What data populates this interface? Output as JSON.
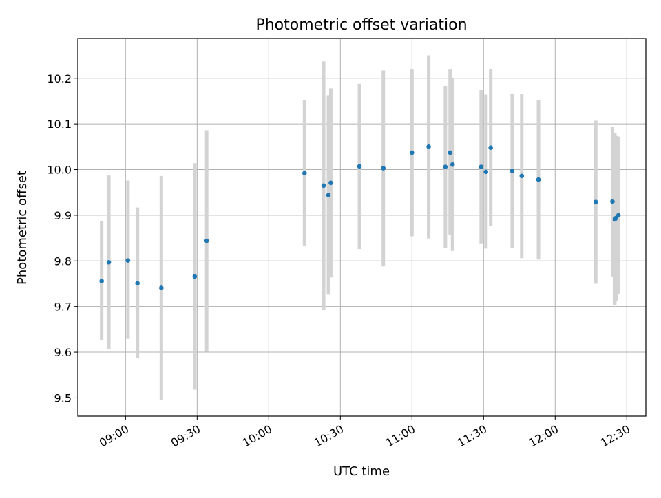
{
  "chart_data": {
    "type": "scatter",
    "title": "Photometric offset variation",
    "xlabel": "UTC time",
    "ylabel": "Photometric offset",
    "x_ticks": [
      "09:00",
      "09:30",
      "10:00",
      "10:30",
      "11:00",
      "11:30",
      "12:00",
      "12:30"
    ],
    "y_ticks": [
      "9.5",
      "9.6",
      "9.7",
      "9.8",
      "9.9",
      "10.0",
      "10.1",
      "10.2"
    ],
    "xlim": [
      "08:40",
      "12:38"
    ],
    "ylim": [
      9.46,
      10.287
    ],
    "grid": true,
    "colors": {
      "point": "#1f77b4",
      "errorbar": "#d3d3d3",
      "grid": "#b0b0b0"
    },
    "points": [
      {
        "time": "08:50",
        "y": 9.756,
        "low": 9.627,
        "high": 9.887
      },
      {
        "time": "08:53",
        "y": 9.797,
        "low": 9.607,
        "high": 9.987
      },
      {
        "time": "09:01",
        "y": 9.801,
        "low": 9.629,
        "high": 9.976
      },
      {
        "time": "09:05",
        "y": 9.751,
        "low": 9.587,
        "high": 9.917
      },
      {
        "time": "09:15",
        "y": 9.741,
        "low": 9.496,
        "high": 9.986
      },
      {
        "time": "09:29",
        "y": 9.766,
        "low": 9.518,
        "high": 10.014
      },
      {
        "time": "09:34",
        "y": 9.844,
        "low": 9.601,
        "high": 10.086
      },
      {
        "time": "10:15",
        "y": 9.992,
        "low": 9.832,
        "high": 10.153
      },
      {
        "time": "10:23",
        "y": 9.965,
        "low": 9.693,
        "high": 10.237
      },
      {
        "time": "10:25",
        "y": 9.944,
        "low": 9.726,
        "high": 10.163
      },
      {
        "time": "10:26",
        "y": 9.971,
        "low": 9.764,
        "high": 10.178
      },
      {
        "time": "10:38",
        "y": 10.007,
        "low": 9.826,
        "high": 10.188
      },
      {
        "time": "10:48",
        "y": 10.003,
        "low": 9.788,
        "high": 10.217
      },
      {
        "time": "11:00",
        "y": 10.037,
        "low": 9.854,
        "high": 10.219
      },
      {
        "time": "11:07",
        "y": 10.05,
        "low": 9.849,
        "high": 10.25
      },
      {
        "time": "11:14",
        "y": 10.006,
        "low": 9.828,
        "high": 10.183
      },
      {
        "time": "11:16",
        "y": 10.037,
        "low": 9.857,
        "high": 10.219
      },
      {
        "time": "11:17",
        "y": 10.011,
        "low": 9.822,
        "high": 10.2
      },
      {
        "time": "11:29",
        "y": 10.006,
        "low": 9.837,
        "high": 10.174
      },
      {
        "time": "11:31",
        "y": 9.995,
        "low": 9.827,
        "high": 10.164
      },
      {
        "time": "11:33",
        "y": 10.048,
        "low": 9.876,
        "high": 10.22
      },
      {
        "time": "11:42",
        "y": 9.997,
        "low": 9.828,
        "high": 10.166
      },
      {
        "time": "11:46",
        "y": 9.986,
        "low": 9.806,
        "high": 10.165
      },
      {
        "time": "11:53",
        "y": 9.978,
        "low": 9.803,
        "high": 10.153
      },
      {
        "time": "12:17",
        "y": 9.929,
        "low": 9.75,
        "high": 10.107
      },
      {
        "time": "12:24",
        "y": 9.93,
        "low": 9.766,
        "high": 10.094
      },
      {
        "time": "12:25",
        "y": 9.891,
        "low": 9.703,
        "high": 10.08
      },
      {
        "time": "12:25.5",
        "y": 9.894,
        "low": 9.712,
        "high": 10.075
      },
      {
        "time": "12:26.5",
        "y": 9.9,
        "low": 9.728,
        "high": 10.072
      }
    ]
  }
}
